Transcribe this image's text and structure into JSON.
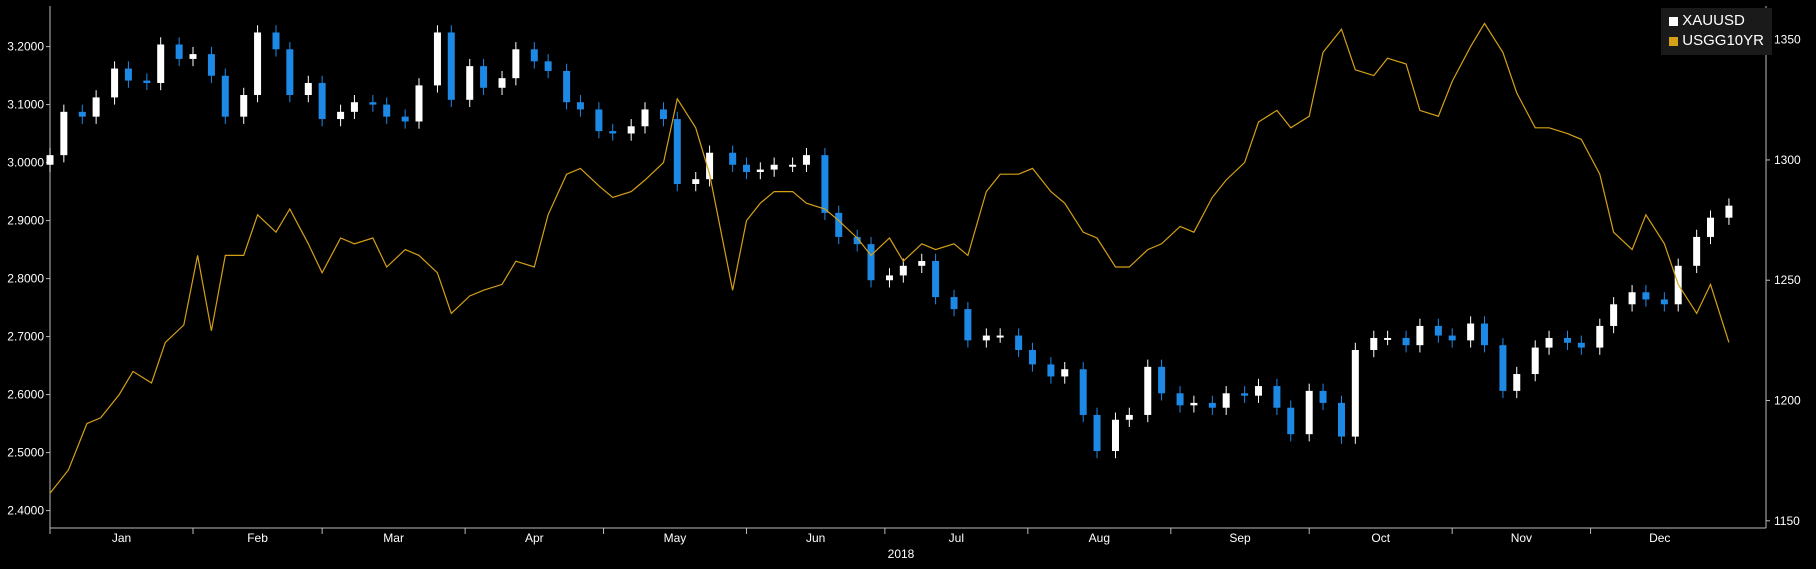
{
  "chart_data": {
    "type": "line",
    "title": "",
    "xlabel": "2018",
    "months": [
      "Jan",
      "Feb",
      "Mar",
      "Apr",
      "May",
      "Jun",
      "Jul",
      "Aug",
      "Sep",
      "Oct",
      "Nov",
      "Dec"
    ],
    "y_left": {
      "ylim": [
        2.37,
        3.27
      ],
      "ticks": [
        "2.4000",
        "2.5000",
        "2.6000",
        "2.7000",
        "2.8000",
        "2.9000",
        "3.0000",
        "3.1000",
        "3.2000"
      ]
    },
    "y_right": {
      "ylim": [
        1147,
        1364
      ],
      "ticks": [
        "1150",
        "1200",
        "1250",
        "1300",
        "1350"
      ]
    },
    "legend": {
      "placement": "top-right",
      "entries": [
        "XAUUSD",
        "USGG10YR"
      ]
    },
    "grid": false,
    "colors": {
      "background": "#000000",
      "candle_up": "#ffffff",
      "candle_down": "#1e88e5",
      "line": "#d4a017",
      "axis": "#bbbbbb",
      "text": "#ffffff"
    },
    "series": [
      {
        "name": "USGG10YR",
        "axis": "left",
        "style": "line",
        "points": [
          [
            "2018-01-01",
            2.43
          ],
          [
            "2018-01-05",
            2.47
          ],
          [
            "2018-01-09",
            2.55
          ],
          [
            "2018-01-12",
            2.56
          ],
          [
            "2018-01-16",
            2.6
          ],
          [
            "2018-01-19",
            2.64
          ],
          [
            "2018-01-23",
            2.62
          ],
          [
            "2018-01-26",
            2.69
          ],
          [
            "2018-01-30",
            2.72
          ],
          [
            "2018-02-02",
            2.84
          ],
          [
            "2018-02-05",
            2.71
          ],
          [
            "2018-02-08",
            2.84
          ],
          [
            "2018-02-12",
            2.84
          ],
          [
            "2018-02-15",
            2.91
          ],
          [
            "2018-02-19",
            2.88
          ],
          [
            "2018-02-22",
            2.92
          ],
          [
            "2018-02-26",
            2.86
          ],
          [
            "2018-03-01",
            2.81
          ],
          [
            "2018-03-05",
            2.87
          ],
          [
            "2018-03-08",
            2.86
          ],
          [
            "2018-03-12",
            2.87
          ],
          [
            "2018-03-15",
            2.82
          ],
          [
            "2018-03-19",
            2.85
          ],
          [
            "2018-03-22",
            2.84
          ],
          [
            "2018-03-26",
            2.81
          ],
          [
            "2018-03-29",
            2.74
          ],
          [
            "2018-04-02",
            2.77
          ],
          [
            "2018-04-05",
            2.78
          ],
          [
            "2018-04-09",
            2.79
          ],
          [
            "2018-04-12",
            2.83
          ],
          [
            "2018-04-16",
            2.82
          ],
          [
            "2018-04-19",
            2.91
          ],
          [
            "2018-04-23",
            2.98
          ],
          [
            "2018-04-26",
            2.99
          ],
          [
            "2018-04-30",
            2.96
          ],
          [
            "2018-05-03",
            2.94
          ],
          [
            "2018-05-07",
            2.95
          ],
          [
            "2018-05-10",
            2.97
          ],
          [
            "2018-05-14",
            3.0
          ],
          [
            "2018-05-17",
            3.11
          ],
          [
            "2018-05-21",
            3.06
          ],
          [
            "2018-05-24",
            2.98
          ],
          [
            "2018-05-29",
            2.78
          ],
          [
            "2018-06-01",
            2.9
          ],
          [
            "2018-06-04",
            2.93
          ],
          [
            "2018-06-07",
            2.95
          ],
          [
            "2018-06-11",
            2.95
          ],
          [
            "2018-06-14",
            2.93
          ],
          [
            "2018-06-18",
            2.92
          ],
          [
            "2018-06-21",
            2.9
          ],
          [
            "2018-06-25",
            2.87
          ],
          [
            "2018-06-28",
            2.84
          ],
          [
            "2018-07-02",
            2.87
          ],
          [
            "2018-07-05",
            2.83
          ],
          [
            "2018-07-09",
            2.86
          ],
          [
            "2018-07-12",
            2.85
          ],
          [
            "2018-07-16",
            2.86
          ],
          [
            "2018-07-19",
            2.84
          ],
          [
            "2018-07-23",
            2.95
          ],
          [
            "2018-07-26",
            2.98
          ],
          [
            "2018-07-30",
            2.98
          ],
          [
            "2018-08-02",
            2.99
          ],
          [
            "2018-08-06",
            2.95
          ],
          [
            "2018-08-09",
            2.93
          ],
          [
            "2018-08-13",
            2.88
          ],
          [
            "2018-08-16",
            2.87
          ],
          [
            "2018-08-20",
            2.82
          ],
          [
            "2018-08-23",
            2.82
          ],
          [
            "2018-08-27",
            2.85
          ],
          [
            "2018-08-30",
            2.86
          ],
          [
            "2018-09-03",
            2.89
          ],
          [
            "2018-09-06",
            2.88
          ],
          [
            "2018-09-10",
            2.94
          ],
          [
            "2018-09-13",
            2.97
          ],
          [
            "2018-09-17",
            3.0
          ],
          [
            "2018-09-20",
            3.07
          ],
          [
            "2018-09-24",
            3.09
          ],
          [
            "2018-09-27",
            3.06
          ],
          [
            "2018-10-01",
            3.08
          ],
          [
            "2018-10-04",
            3.19
          ],
          [
            "2018-10-08",
            3.23
          ],
          [
            "2018-10-11",
            3.16
          ],
          [
            "2018-10-15",
            3.15
          ],
          [
            "2018-10-18",
            3.18
          ],
          [
            "2018-10-22",
            3.17
          ],
          [
            "2018-10-25",
            3.09
          ],
          [
            "2018-10-29",
            3.08
          ],
          [
            "2018-11-01",
            3.14
          ],
          [
            "2018-11-05",
            3.2
          ],
          [
            "2018-11-08",
            3.24
          ],
          [
            "2018-11-12",
            3.19
          ],
          [
            "2018-11-15",
            3.12
          ],
          [
            "2018-11-19",
            3.06
          ],
          [
            "2018-11-22",
            3.06
          ],
          [
            "2018-11-26",
            3.05
          ],
          [
            "2018-11-29",
            3.04
          ],
          [
            "2018-12-03",
            2.98
          ],
          [
            "2018-12-06",
            2.88
          ],
          [
            "2018-12-10",
            2.85
          ],
          [
            "2018-12-13",
            2.91
          ],
          [
            "2018-12-17",
            2.86
          ],
          [
            "2018-12-20",
            2.79
          ],
          [
            "2018-12-24",
            2.74
          ],
          [
            "2018-12-27",
            2.79
          ],
          [
            "2018-12-31",
            2.69
          ]
        ]
      },
      {
        "name": "XAUUSD",
        "axis": "right",
        "style": "candlestick",
        "points": [
          [
            "2018-01-01",
            1302
          ],
          [
            "2018-01-04",
            1320
          ],
          [
            "2018-01-08",
            1318
          ],
          [
            "2018-01-11",
            1326
          ],
          [
            "2018-01-15",
            1338
          ],
          [
            "2018-01-18",
            1333
          ],
          [
            "2018-01-22",
            1332
          ],
          [
            "2018-01-25",
            1348
          ],
          [
            "2018-01-29",
            1342
          ],
          [
            "2018-02-01",
            1344
          ],
          [
            "2018-02-05",
            1335
          ],
          [
            "2018-02-08",
            1318
          ],
          [
            "2018-02-12",
            1327
          ],
          [
            "2018-02-15",
            1353
          ],
          [
            "2018-02-19",
            1346
          ],
          [
            "2018-02-22",
            1327
          ],
          [
            "2018-02-26",
            1332
          ],
          [
            "2018-03-01",
            1317
          ],
          [
            "2018-03-05",
            1320
          ],
          [
            "2018-03-08",
            1324
          ],
          [
            "2018-03-12",
            1323
          ],
          [
            "2018-03-15",
            1318
          ],
          [
            "2018-03-19",
            1316
          ],
          [
            "2018-03-22",
            1331
          ],
          [
            "2018-03-26",
            1353
          ],
          [
            "2018-03-29",
            1325
          ],
          [
            "2018-04-02",
            1339
          ],
          [
            "2018-04-05",
            1330
          ],
          [
            "2018-04-09",
            1334
          ],
          [
            "2018-04-12",
            1346
          ],
          [
            "2018-04-16",
            1341
          ],
          [
            "2018-04-19",
            1337
          ],
          [
            "2018-04-23",
            1324
          ],
          [
            "2018-04-26",
            1321
          ],
          [
            "2018-04-30",
            1312
          ],
          [
            "2018-05-03",
            1311
          ],
          [
            "2018-05-07",
            1314
          ],
          [
            "2018-05-10",
            1321
          ],
          [
            "2018-05-14",
            1317
          ],
          [
            "2018-05-17",
            1290
          ],
          [
            "2018-05-21",
            1292
          ],
          [
            "2018-05-24",
            1303
          ],
          [
            "2018-05-29",
            1298
          ],
          [
            "2018-06-01",
            1295
          ],
          [
            "2018-06-04",
            1296
          ],
          [
            "2018-06-07",
            1298
          ],
          [
            "2018-06-11",
            1298
          ],
          [
            "2018-06-14",
            1302
          ],
          [
            "2018-06-18",
            1278
          ],
          [
            "2018-06-21",
            1268
          ],
          [
            "2018-06-25",
            1265
          ],
          [
            "2018-06-28",
            1250
          ],
          [
            "2018-07-02",
            1252
          ],
          [
            "2018-07-05",
            1256
          ],
          [
            "2018-07-09",
            1258
          ],
          [
            "2018-07-12",
            1243
          ],
          [
            "2018-07-16",
            1238
          ],
          [
            "2018-07-19",
            1225
          ],
          [
            "2018-07-23",
            1227
          ],
          [
            "2018-07-26",
            1227
          ],
          [
            "2018-07-30",
            1221
          ],
          [
            "2018-08-02",
            1215
          ],
          [
            "2018-08-06",
            1210
          ],
          [
            "2018-08-09",
            1213
          ],
          [
            "2018-08-13",
            1194
          ],
          [
            "2018-08-16",
            1179
          ],
          [
            "2018-08-20",
            1192
          ],
          [
            "2018-08-23",
            1194
          ],
          [
            "2018-08-27",
            1214
          ],
          [
            "2018-08-30",
            1203
          ],
          [
            "2018-09-03",
            1198
          ],
          [
            "2018-09-06",
            1199
          ],
          [
            "2018-09-10",
            1197
          ],
          [
            "2018-09-13",
            1203
          ],
          [
            "2018-09-17",
            1202
          ],
          [
            "2018-09-20",
            1206
          ],
          [
            "2018-09-24",
            1197
          ],
          [
            "2018-09-27",
            1186
          ],
          [
            "2018-10-01",
            1204
          ],
          [
            "2018-10-04",
            1199
          ],
          [
            "2018-10-08",
            1185
          ],
          [
            "2018-10-11",
            1221
          ],
          [
            "2018-10-15",
            1226
          ],
          [
            "2018-10-18",
            1226
          ],
          [
            "2018-10-22",
            1223
          ],
          [
            "2018-10-25",
            1231
          ],
          [
            "2018-10-29",
            1227
          ],
          [
            "2018-11-01",
            1225
          ],
          [
            "2018-11-05",
            1232
          ],
          [
            "2018-11-08",
            1223
          ],
          [
            "2018-11-12",
            1204
          ],
          [
            "2018-11-15",
            1211
          ],
          [
            "2018-11-19",
            1222
          ],
          [
            "2018-11-22",
            1226
          ],
          [
            "2018-11-26",
            1224
          ],
          [
            "2018-11-29",
            1222
          ],
          [
            "2018-12-03",
            1231
          ],
          [
            "2018-12-06",
            1240
          ],
          [
            "2018-12-10",
            1245
          ],
          [
            "2018-12-13",
            1242
          ],
          [
            "2018-12-17",
            1240
          ],
          [
            "2018-12-20",
            1256
          ],
          [
            "2018-12-24",
            1268
          ],
          [
            "2018-12-27",
            1276
          ],
          [
            "2018-12-31",
            1281
          ]
        ]
      }
    ]
  }
}
